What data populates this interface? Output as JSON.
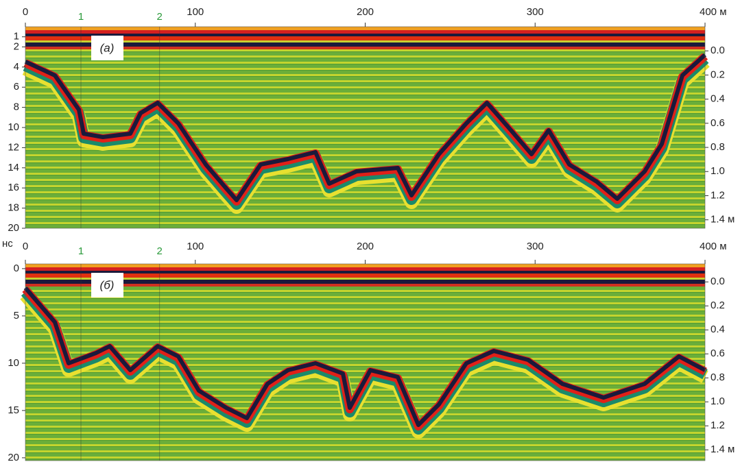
{
  "chart_data": [
    {
      "type": "radargram",
      "panel_label": "(а)",
      "xlim": [
        0,
        400
      ],
      "xticks": [
        0,
        100,
        200,
        300,
        {
          "value": 400,
          "label": "400 м"
        }
      ],
      "ylim": [
        0,
        20
      ],
      "yticks": [
        1,
        2,
        4,
        6,
        8,
        10,
        12,
        14,
        16,
        18,
        20
      ],
      "y2lim": [
        -0.2,
        1.47
      ],
      "y2ticks": [
        {
          "value": 0,
          "label": "0.0"
        },
        0.2,
        0.4,
        0.6,
        0.8,
        {
          "value": 1,
          "label": "1.0"
        },
        1.2,
        {
          "value": 1.4,
          "label": "1.4 м"
        }
      ],
      "markers": [
        {
          "label": "1",
          "x": 32.7
        },
        {
          "label": "2",
          "x": 79
        }
      ],
      "marker_color": "#2a9a3a"
    },
    {
      "type": "radargram",
      "panel_label": "(б)",
      "ylabel": "нс",
      "xlim": [
        0,
        400
      ],
      "xticks": [
        0,
        100,
        200,
        300,
        {
          "value": 400,
          "label": "400 м"
        }
      ],
      "ylim": [
        -0.5,
        20.3
      ],
      "yticks": [
        0,
        5,
        10,
        15,
        20
      ],
      "y2lim": [
        -0.15,
        1.49
      ],
      "y2ticks": [
        {
          "value": 0,
          "label": "0.0"
        },
        0.2,
        0.4,
        0.6,
        0.8,
        {
          "value": 1,
          "label": "1.0"
        },
        1.2,
        {
          "value": 1.4,
          "label": "1.4 м"
        }
      ],
      "markers": [
        {
          "label": "1",
          "x": 32.7
        },
        {
          "label": "2",
          "x": 79
        }
      ],
      "marker_color": "#2a9a3a"
    }
  ]
}
